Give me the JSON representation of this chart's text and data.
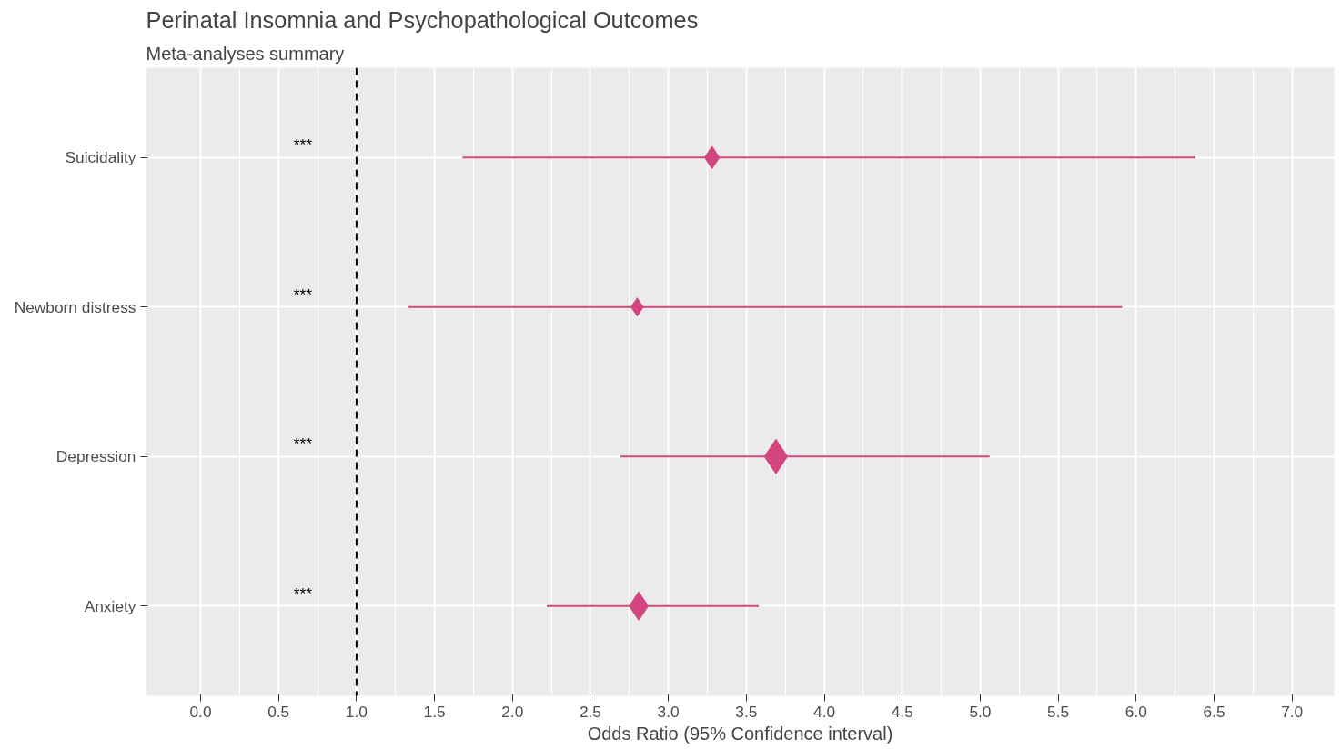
{
  "chart_data": {
    "type": "bubble",
    "title": "Perinatal Insomnia and Psychopathological Outcomes",
    "subtitle": "Meta-analyses summary",
    "xlabel": "Odds Ratio (95% Confidence interval)",
    "orientation": "horizontal",
    "marker": "diamond",
    "grid": true,
    "categories": [
      "Suicidality",
      "Newborn distress",
      "Depression",
      "Anxiety"
    ],
    "color": "#d4457f",
    "values": [
      3.28,
      2.8,
      3.69,
      2.81
    ],
    "errors": [
      [
        1.68,
        6.38
      ],
      [
        1.33,
        5.91
      ],
      [
        2.69,
        5.06
      ],
      [
        2.22,
        3.58
      ]
    ],
    "sizes": [
      0.42,
      0.28,
      1,
      0.68
    ],
    "xlim": [
      -0.35,
      7.27
    ],
    "xticks": [
      {
        "value": 0,
        "label": "0.0"
      },
      0.5,
      {
        "value": 1,
        "label": "1.0"
      },
      1.5,
      {
        "value": 2,
        "label": "2.0"
      },
      2.5,
      {
        "value": 3,
        "label": "3.0"
      },
      3.5,
      {
        "value": 4,
        "label": "4.0"
      },
      4.5,
      {
        "value": 5,
        "label": "5.0"
      },
      5.5,
      {
        "value": 6,
        "label": "6.0"
      },
      6.5,
      {
        "value": 7,
        "label": "7.0"
      }
    ],
    "ref_lines": [
      {
        "axis": "x",
        "value": 1,
        "color": "#000000",
        "line_style": "dashed"
      }
    ],
    "annotations": [
      "***",
      "***",
      "***",
      "***"
    ]
  }
}
